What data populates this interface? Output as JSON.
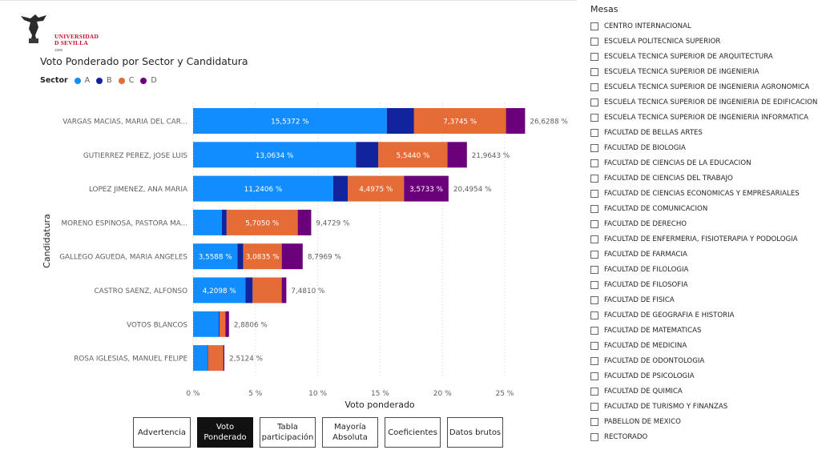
{
  "logo": {
    "line1": "UNIVERSIDAD",
    "line2": "D SEVILLA",
    "year": "1505"
  },
  "chart_title": "Voto Ponderado por Sector y Candidatura",
  "legend": {
    "title": "Sector",
    "items": [
      {
        "label": "A",
        "color": "#118dff"
      },
      {
        "label": "B",
        "color": "#12239e"
      },
      {
        "label": "C",
        "color": "#e66c37"
      },
      {
        "label": "D",
        "color": "#6b007b"
      }
    ]
  },
  "chart_data": {
    "type": "bar",
    "orientation": "horizontal",
    "stacked": true,
    "title": "Voto Ponderado por Sector y Candidatura",
    "xlabel": "Voto ponderado",
    "ylabel": "Candidatura",
    "xlim": [
      0,
      27
    ],
    "x_ticks": [
      0,
      5,
      10,
      15,
      20,
      25
    ],
    "x_tick_labels": [
      "0 %",
      "5 %",
      "10 %",
      "15 %",
      "20 %",
      "25 %"
    ],
    "grid": "vertical-dotted",
    "legend_position": "top-left",
    "categories": [
      "VARGAS MACIAS, MARIA DEL CAR...",
      "GUTIERREZ PEREZ, JOSE LUIS",
      "LOPEZ JIMENEZ, ANA MARIA",
      "MORENO ESPINOSA, PASTORA MA...",
      "GALLEGO AGUEDA, MARIA ANGELES",
      "CASTRO SAENZ, ALFONSO",
      "VOTOS BLANCOS",
      "ROSA IGLESIAS, MANUEL FELIPE"
    ],
    "series": [
      {
        "name": "A",
        "color": "#118dff",
        "values": [
          15.5372,
          13.0634,
          11.2406,
          2.31,
          3.5588,
          4.2098,
          2.06,
          1.14
        ],
        "labels": [
          "15,5372 %",
          "13,0634 %",
          "11,2406 %",
          "",
          "3,5588 %",
          "4,2098 %",
          "",
          ""
        ]
      },
      {
        "name": "B",
        "color": "#12239e",
        "values": [
          2.19,
          1.8,
          1.18,
          0.38,
          0.47,
          0.57,
          0.06,
          0.06
        ],
        "labels": [
          "",
          "",
          "",
          "",
          "",
          "",
          "",
          ""
        ]
      },
      {
        "name": "C",
        "color": "#e66c37",
        "values": [
          7.3745,
          5.544,
          4.4975,
          5.705,
          3.0835,
          2.33,
          0.47,
          1.22
        ],
        "labels": [
          "7,3745 %",
          "5,5440 %",
          "4,4975 %",
          "5,7050 %",
          "3,0835 %",
          "",
          "",
          ""
        ]
      },
      {
        "name": "D",
        "color": "#6b007b",
        "values": [
          1.53,
          1.56,
          3.5733,
          1.08,
          1.68,
          0.37,
          0.29,
          0.09
        ],
        "labels": [
          "",
          "",
          "3,5733 %",
          "",
          "",
          "",
          "",
          ""
        ]
      }
    ],
    "totals": [
      26.6288,
      21.9643,
      20.4954,
      9.4729,
      8.7969,
      7.481,
      2.8806,
      2.5124
    ],
    "total_labels": [
      "26,6288 %",
      "21,9643 %",
      "20,4954 %",
      "9,4729 %",
      "8,7969 %",
      "7,4810 %",
      "2,8806 %",
      "2,5124 %"
    ]
  },
  "nav_buttons": [
    {
      "label": "Advertencia",
      "active": false
    },
    {
      "label": "Voto\nPonderado",
      "active": true
    },
    {
      "label": "Tabla\nparticipación",
      "active": false
    },
    {
      "label": "Mayoría\nAbsoluta",
      "active": false
    },
    {
      "label": "Coeficientes",
      "active": false
    },
    {
      "label": "Datos brutos",
      "active": false
    }
  ],
  "slicer": {
    "title": "Mesas",
    "items": [
      "CENTRO INTERNACIONAL",
      "ESCUELA POLITECNICA SUPERIOR",
      "ESCUELA TECNICA SUPERIOR DE ARQUITECTURA",
      "ESCUELA TECNICA SUPERIOR DE INGENIERIA",
      "ESCUELA TECNICA SUPERIOR DE INGENIERIA AGRONOMICA",
      "ESCUELA TECNICA SUPERIOR DE INGENIERIA DE EDIFICACION",
      "ESCUELA TECNICA SUPERIOR DE INGENIERIA INFORMATICA",
      "FACULTAD DE BELLAS ARTES",
      "FACULTAD DE BIOLOGIA",
      "FACULTAD DE CIENCIAS DE LA EDUCACION",
      "FACULTAD DE CIENCIAS DEL TRABAJO",
      "FACULTAD DE CIENCIAS ECONOMICAS Y EMPRESARIALES",
      "FACULTAD DE COMUNICACION",
      "FACULTAD DE DERECHO",
      "FACULTAD DE ENFERMERIA, FISIOTERAPIA Y PODOLOGIA",
      "FACULTAD DE FARMACIA",
      "FACULTAD DE FILOLOGIA",
      "FACULTAD DE FILOSOFIA",
      "FACULTAD DE FISICA",
      "FACULTAD DE GEOGRAFIA E HISTORIA",
      "FACULTAD DE MATEMATICAS",
      "FACULTAD DE MEDICINA",
      "FACULTAD DE ODONTOLOGIA",
      "FACULTAD DE PSICOLOGIA",
      "FACULTAD DE QUIMICA",
      "FACULTAD DE TURISMO Y FINANZAS",
      "PABELLON DE MEXICO",
      "RECTORADO"
    ]
  }
}
